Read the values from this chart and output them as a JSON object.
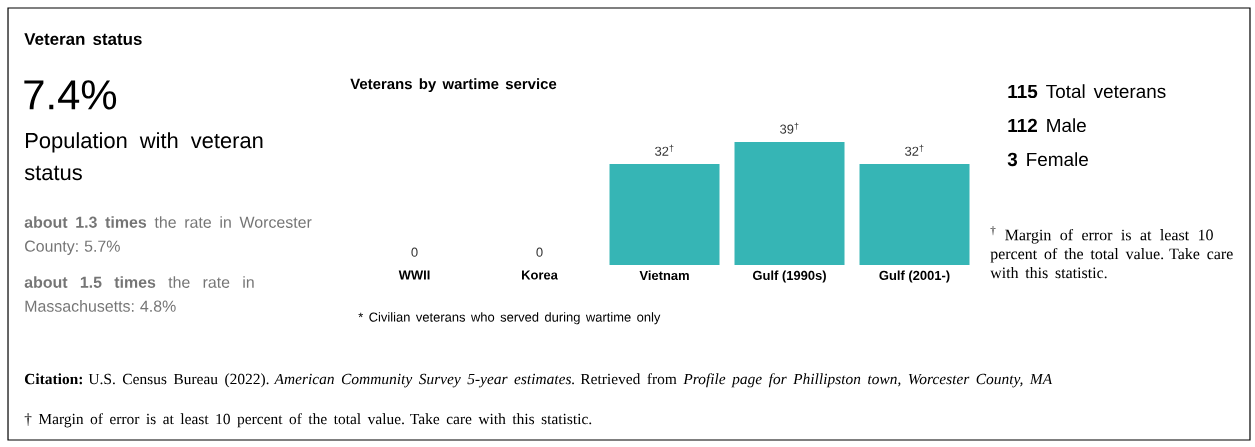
{
  "chart_data": [
    {
      "type": "other",
      "title": "Veteran status",
      "annotations": [
        "7.4%",
        "Population with veteran status",
        "**about 1.3 times** the rate in Worcester County: 5.7%",
        "**about 1.5 times** the rate in Massachusetts: 4.8%",
        "**Citation:** U.S. Census Bureau (2022). *American Community Survey 5-year estimates.* Retrieved from *Profile page for Phillipston town, Worcester County, MA*",
        "† Margin of error is at least 10 percent of the total value. Take care with this statistic."
      ]
    },
    {
      "type": "bar",
      "title": "Veterans by wartime service",
      "categories": [
        "WWII",
        "Korea",
        "Vietnam",
        "Gulf (1990s)",
        "Gulf (2001-)"
      ],
      "values": [
        0,
        0,
        32,
        39,
        32
      ],
      "value_labels": [
        "0",
        "0",
        "32$^{†}$",
        "39$^{†}$",
        "32$^{†}$"
      ],
      "color": "#36b5b5",
      "annotations": [
        "* Civilian veterans who served during wartime only"
      ]
    },
    {
      "type": "other",
      "annotations": [
        "**115** Total veterans",
        "**112** Male",
        "**3** Female",
        "$^{†}$ Margin of error is at least 10 percent of the total value. Take care with this statistic."
      ]
    }
  ]
}
